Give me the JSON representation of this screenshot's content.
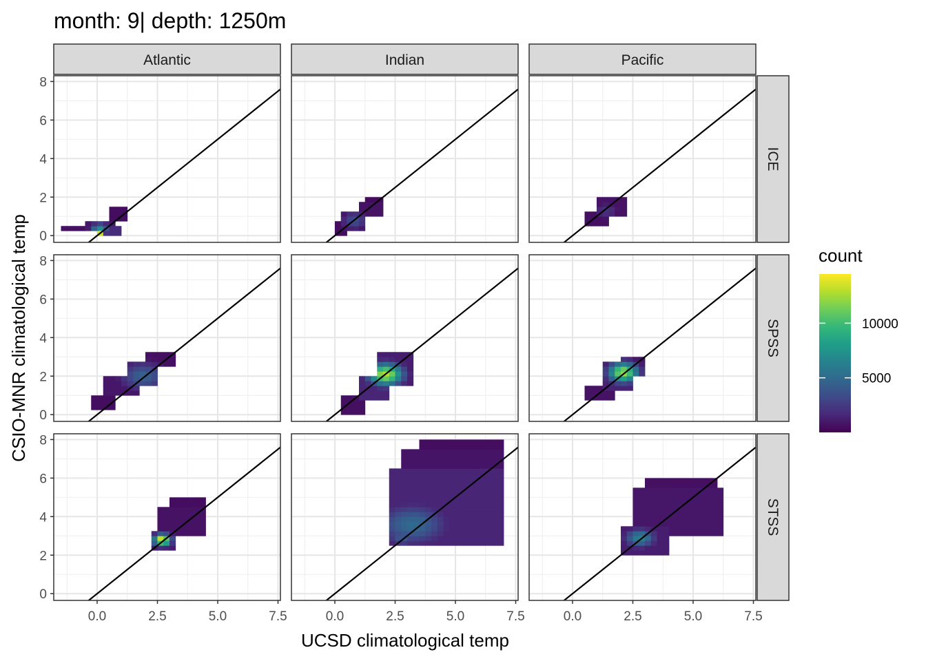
{
  "chart_data": {
    "type": "heatmap",
    "subtype": "2d-binned-facets",
    "title": "month: 9| depth: 1250m",
    "xlabel": "UCSD climatological temp",
    "ylabel": "CSIO-MNR climatological temp",
    "xlim": [
      -1.8,
      7.6
    ],
    "ylim": [
      -0.35,
      8.3
    ],
    "x_ticks": [
      "0.0",
      "2.5",
      "5.0",
      "7.5"
    ],
    "x_tick_values": [
      0,
      2.5,
      5,
      7.5
    ],
    "y_ticks": [
      "0",
      "2",
      "4",
      "6",
      "8"
    ],
    "y_tick_values": [
      0,
      2,
      4,
      6,
      8
    ],
    "grid": true,
    "reference_line": {
      "slope": 1,
      "intercept": 0,
      "color": "#000000"
    },
    "columns": [
      "Atlantic",
      "Indian",
      "Pacific"
    ],
    "rows": [
      "ICE",
      "SPSS",
      "STSS"
    ],
    "legend": {
      "title": "count",
      "position": "right",
      "ticks": [
        "5000",
        "10000"
      ],
      "tick_values": [
        5000,
        10000
      ],
      "min": 1,
      "max": 14500,
      "colors": [
        "#440154",
        "#482878",
        "#3E4A89",
        "#31688E",
        "#26828E",
        "#1F9E89",
        "#35B779",
        "#6DCD59",
        "#B4DE2C",
        "#FDE725"
      ]
    },
    "bin_width": 0.25,
    "panels": [
      {
        "col": "Atlantic",
        "row": "ICE",
        "regions": [
          {
            "x": [
              -1.4,
              0.35
            ],
            "y": [
              0.25,
              0.45
            ],
            "count": 600
          },
          {
            "x": [
              -0.6,
              0.7
            ],
            "y": [
              0.45,
              0.75
            ],
            "count": 900
          },
          {
            "x": [
              0.0,
              1.0
            ],
            "y": [
              0.0,
              0.45
            ],
            "count": 1800
          },
          {
            "x": [
              0.6,
              1.3
            ],
            "y": [
              0.7,
              1.5
            ],
            "count": 500
          }
        ],
        "hotspots": [
          {
            "x": 0.1,
            "y": 0.35,
            "count": 7000,
            "rx": 0.35,
            "ry": 0.3
          },
          {
            "x": 0.15,
            "y": 0.1,
            "count": 14500,
            "rx": 0.15,
            "ry": 0.12
          }
        ]
      },
      {
        "col": "Indian",
        "row": "ICE",
        "regions": [
          {
            "x": [
              0.0,
              0.6
            ],
            "y": [
              0.1,
              0.7
            ],
            "count": 500
          },
          {
            "x": [
              0.3,
              1.3
            ],
            "y": [
              0.3,
              1.3
            ],
            "count": 900
          },
          {
            "x": [
              0.9,
              1.9
            ],
            "y": [
              1.0,
              1.7
            ],
            "count": 700
          },
          {
            "x": [
              1.3,
              1.9
            ],
            "y": [
              1.5,
              2.0
            ],
            "count": 400
          }
        ],
        "hotspots": [
          {
            "x": 0.8,
            "y": 0.8,
            "count": 3500,
            "rx": 0.5,
            "ry": 0.45
          }
        ]
      },
      {
        "col": "Pacific",
        "row": "ICE",
        "regions": [
          {
            "x": [
              0.6,
              1.4
            ],
            "y": [
              0.6,
              1.2
            ],
            "count": 600
          },
          {
            "x": [
              1.1,
              2.2
            ],
            "y": [
              1.1,
              2.0
            ],
            "count": 700
          }
        ],
        "hotspots": [
          {
            "x": 1.4,
            "y": 1.3,
            "count": 2200,
            "rx": 0.5,
            "ry": 0.4
          }
        ]
      },
      {
        "col": "Atlantic",
        "row": "SPSS",
        "regions": [
          {
            "x": [
              -0.2,
              0.8
            ],
            "y": [
              0.3,
              1.0
            ],
            "count": 500
          },
          {
            "x": [
              0.3,
              1.8
            ],
            "y": [
              0.9,
              1.9
            ],
            "count": 900
          },
          {
            "x": [
              1.3,
              2.5
            ],
            "y": [
              1.6,
              2.7
            ],
            "count": 1200
          },
          {
            "x": [
              2.1,
              3.2
            ],
            "y": [
              2.4,
              3.3
            ],
            "count": 600
          }
        ],
        "hotspots": [
          {
            "x": 1.9,
            "y": 2.0,
            "count": 4500,
            "rx": 0.9,
            "ry": 0.7
          }
        ]
      },
      {
        "col": "Indian",
        "row": "SPSS",
        "regions": [
          {
            "x": [
              0.3,
              1.3
            ],
            "y": [
              0.1,
              1.0
            ],
            "count": 600
          },
          {
            "x": [
              0.9,
              2.3
            ],
            "y": [
              0.8,
              2.1
            ],
            "count": 1500
          },
          {
            "x": [
              1.7,
              3.3
            ],
            "y": [
              1.6,
              3.2
            ],
            "count": 1200
          }
        ],
        "hotspots": [
          {
            "x": 2.1,
            "y": 2.1,
            "count": 13000,
            "rx": 0.7,
            "ry": 0.55
          }
        ]
      },
      {
        "col": "Pacific",
        "row": "SPSS",
        "regions": [
          {
            "x": [
              0.6,
              1.7
            ],
            "y": [
              0.7,
              1.6
            ],
            "count": 700
          },
          {
            "x": [
              1.2,
              2.6
            ],
            "y": [
              1.2,
              2.7
            ],
            "count": 1400
          },
          {
            "x": [
              2.0,
              3.1
            ],
            "y": [
              2.0,
              3.1
            ],
            "count": 700
          }
        ],
        "hotspots": [
          {
            "x": 2.1,
            "y": 2.2,
            "count": 12500,
            "rx": 0.6,
            "ry": 0.5
          }
        ]
      },
      {
        "col": "Atlantic",
        "row": "STSS",
        "regions": [
          {
            "x": [
              2.3,
              3.3
            ],
            "y": [
              2.3,
              3.3
            ],
            "count": 1200
          },
          {
            "x": [
              2.6,
              4.6
            ],
            "y": [
              3.0,
              4.6
            ],
            "count": 700
          },
          {
            "x": [
              3.0,
              4.6
            ],
            "y": [
              3.8,
              5.1
            ],
            "count": 500
          }
        ],
        "hotspots": [
          {
            "x": 2.7,
            "y": 2.8,
            "count": 14500,
            "rx": 0.35,
            "ry": 0.3
          }
        ]
      },
      {
        "col": "Indian",
        "row": "STSS",
        "regions": [
          {
            "x": [
              2.2,
              7.1
            ],
            "y": [
              2.4,
              6.6
            ],
            "count": 1500
          },
          {
            "x": [
              2.7,
              7.1
            ],
            "y": [
              3.2,
              7.4
            ],
            "count": 800
          },
          {
            "x": [
              3.5,
              6.9
            ],
            "y": [
              6.3,
              8.0
            ],
            "count": 500
          }
        ],
        "hotspots": [
          {
            "x": 3.2,
            "y": 3.6,
            "count": 5000,
            "rx": 1.4,
            "ry": 1.0
          },
          {
            "x": 2.8,
            "y": 2.9,
            "count": 4000,
            "rx": 0.6,
            "ry": 0.4
          }
        ]
      },
      {
        "col": "Pacific",
        "row": "STSS",
        "regions": [
          {
            "x": [
              1.9,
              4.1
            ],
            "y": [
              1.9,
              3.5
            ],
            "count": 1200
          },
          {
            "x": [
              2.4,
              6.3
            ],
            "y": [
              3.0,
              5.6
            ],
            "count": 900
          },
          {
            "x": [
              3.0,
              6.0
            ],
            "y": [
              5.2,
              6.1
            ],
            "count": 600
          }
        ],
        "hotspots": [
          {
            "x": 2.8,
            "y": 2.9,
            "count": 6500,
            "rx": 0.6,
            "ry": 0.45
          }
        ]
      }
    ]
  }
}
